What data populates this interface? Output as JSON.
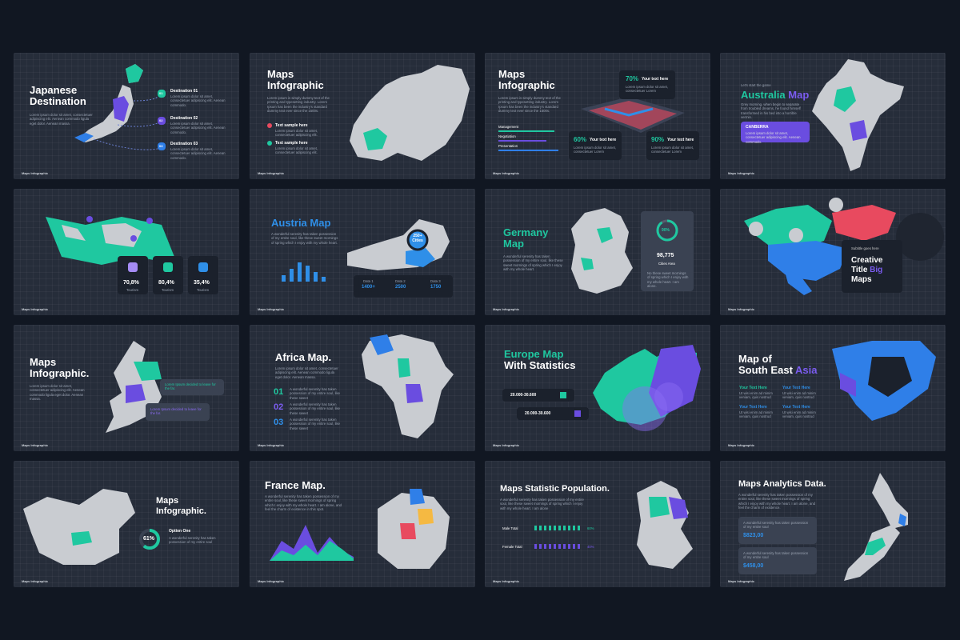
{
  "footer": "Maps Infographic",
  "slides": [
    {
      "title": [
        "Japanese",
        "Destination"
      ],
      "body": "Lorem ipsum dolor sit amet, consectetuer adipiscing elit. Aenean commodo ligula eget dolor. Aenean massa.",
      "items": [
        {
          "badge": "01",
          "label": "Destination 01",
          "text": "Lorem ipsum dolor sit amet, consectetuer adipiscing elit. Aenean commodo."
        },
        {
          "badge": "02",
          "label": "Destination 02",
          "text": "Lorem ipsum dolor sit amet, consectetuer adipiscing elit. Aenean commodo."
        },
        {
          "badge": "03",
          "label": "Destination 03",
          "text": "Lorem ipsum dolor sit amet, consectetuer adipiscing elit. Aenean commodo."
        }
      ]
    },
    {
      "title": [
        "Maps",
        "Infographic"
      ],
      "body": "Lorem ipsum is simply dummy text of the printing and typesetting industry. Lorem Ipsum has been the industry's standard dummy text ever since the 1500s.",
      "items": [
        {
          "label": "Text sample here",
          "text": "Lorem ipsum dolor sit amet, consectetuer adipiscing elit."
        },
        {
          "label": "Text sample here",
          "text": "Lorem ipsum dolor sit amet, consectetuer adipiscing elit."
        }
      ]
    },
    {
      "title": [
        "Maps",
        "Infographic"
      ],
      "body": "Lorem ipsum is simply dummy text of the printing and typesetting industry. Lorem Ipsum has been the industry's standard dummy text ever since the 1500s.",
      "bars": [
        "Management",
        "Negotiation",
        "Presentation"
      ],
      "callouts": [
        {
          "pct": "70%",
          "label": "Your text here",
          "text": "Lorem ipsum dolor sit amet, consectetuer Lorem"
        },
        {
          "pct": "60%",
          "label": "Your text here",
          "text": "Lorem ipsum dolor sit amet, consectetuer Lorem"
        },
        {
          "pct": "90%",
          "label": "Your text here",
          "text": "Lorem ipsum dolor sit amet, consectetuer Lorem"
        }
      ]
    },
    {
      "subtitle": "Let's start the game",
      "title": [
        "Australia",
        "Map"
      ],
      "body": "Grey morning, when begin to separate from troubled dreams, he found himself transformed in his bed into a horrible vermin.",
      "box": {
        "label": "CANBERRA",
        "text": "Lorem ipsum dolor sit amet, consectetuer adipiscing elit. Aenean commodo."
      }
    },
    {
      "stats": [
        {
          "value": "70,8%",
          "label": "Tourism"
        },
        {
          "value": "80,4%",
          "label": "Tourism"
        },
        {
          "value": "35,4%",
          "label": "Tourism"
        }
      ]
    },
    {
      "title": [
        "Austria Map"
      ],
      "body": "A wonderful serenity has taken possession of my entire soul, like these sweet mornings of spring which I enjoy with my whole heart.",
      "pin": [
        "250+",
        "Cities"
      ],
      "data": [
        {
          "label": "Data 1",
          "value": "1400+"
        },
        {
          "label": "Data 2",
          "value": "2500"
        },
        {
          "label": "Data 3",
          "value": "1750"
        }
      ]
    },
    {
      "title": [
        "Germany",
        "Map"
      ],
      "body": "A wonderful serenity has taken possession of my entire soul, like these sweet mornings of spring which I enjoy with my whole heart.",
      "donut": "90%",
      "number": "98,775",
      "caption": "Cities Area",
      "text": "No these sweet mornings of spring which I enjoy with my whole heart. I am alone."
    },
    {
      "subtitle": "Subtitle goes here",
      "title": [
        "Creative",
        "Title",
        "Big",
        "Maps"
      ]
    },
    {
      "title": [
        "Maps",
        "Infographic."
      ],
      "body": "Lorem ipsum dolor sit amet, consectetuer adipiscing elit. Aenean commodo ligula eget dolor. Aenean massa.",
      "notes": [
        "Lorem Ipsum decided to leave for the far.",
        "Lorem Ipsum decided to leave for the far."
      ]
    },
    {
      "title": [
        "Africa Map."
      ],
      "body": "Lorem ipsum dolor sit amet, consectetuer adipiscing elit. Aenean commodo ligula eget dolor. Aenean massa.",
      "items": [
        {
          "badge": "01",
          "text": "A wonderful serenity has taken possession of my entire soul, like these sweet"
        },
        {
          "badge": "02",
          "text": "A wonderful serenity has taken possession of my entire soul, like these sweet"
        },
        {
          "badge": "03",
          "text": "A wonderful serenity has taken possession of my entire soul, like these sweet"
        }
      ]
    },
    {
      "title": [
        "Europe Map",
        "With Statistics"
      ],
      "ranges": [
        "20.000-30.600",
        "20.000-30.600"
      ]
    },
    {
      "title": [
        "Map of",
        "South East",
        "Asia"
      ],
      "items": [
        {
          "label": "Your Text Here",
          "text": "Ut wisi enim ad minim veniam, quis nostrud"
        },
        {
          "label": "Your Text Here",
          "text": "Ut wisi enim ad minim veniam, quis nostrud"
        },
        {
          "label": "Your Text Here",
          "text": "Ut wisi enim ad minim veniam, quis nostrud"
        },
        {
          "label": "Your Text Here",
          "text": "Ut wisi enim ad minim veniam, quis nostrud"
        }
      ]
    },
    {
      "title": [
        "Maps",
        "Infographic."
      ],
      "pct": "61%",
      "label": "Option One",
      "text": "A wonderful serenity has taken possession of my entire soul"
    },
    {
      "title": [
        "France Map."
      ],
      "body": "A wonderful serenity has taken possession of my entire soul, like these sweet mornings of spring which I enjoy with my whole heart. I am alone, and feel the charm of existence in this spot."
    },
    {
      "title": [
        "Maps Statistic Population."
      ],
      "body": "A wonderful serenity has taken possession of my entire soul, like these sweet mornings of spring which I enjoy with my whole heart. I am alone",
      "rows": [
        {
          "label": "Male Total",
          "value": "60%"
        },
        {
          "label": "Female Total",
          "value": "40%"
        }
      ]
    },
    {
      "title": [
        "Maps Analytics Data."
      ],
      "body": "A wonderful serenity has taken possession of my entire soul, like these sweet mornings of spring which I enjoy with my whole heart. I am alone, and feel the charm of existence.",
      "cards": [
        {
          "text": "A wonderful serenity has taken possession of my entire soul",
          "value": "$823,00"
        },
        {
          "text": "A wonderful serenity has taken possession of my entire soul",
          "value": "$458,00"
        }
      ]
    }
  ]
}
